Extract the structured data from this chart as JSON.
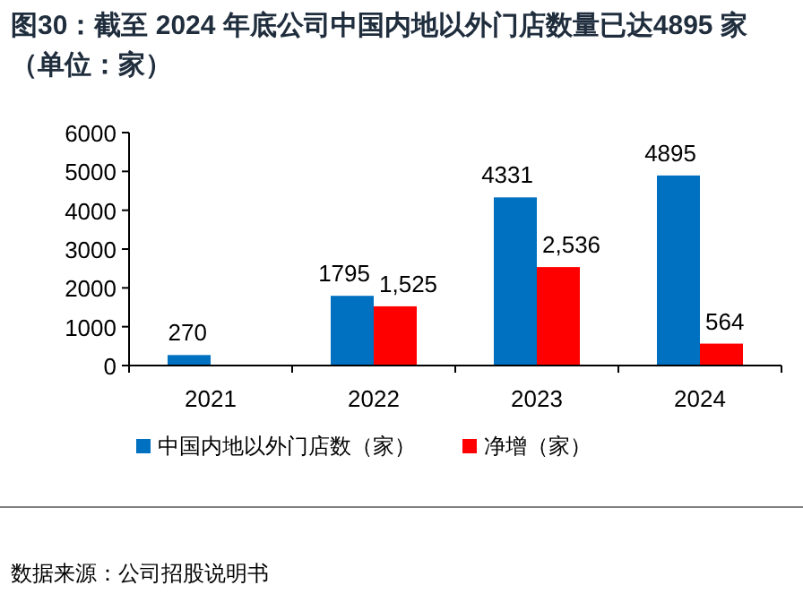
{
  "chart_data": {
    "type": "bar",
    "title": "图30：截至 2024 年底公司中国内地以外门店数量已达4895 家（单位：家）",
    "categories": [
      "2021",
      "2022",
      "2023",
      "2024"
    ],
    "series": [
      {
        "name": "中国内地以外门店数（家）",
        "color": "#0070c0",
        "values": [
          270,
          1795,
          4331,
          4895
        ],
        "value_labels": [
          "270",
          "1795",
          "4331",
          "4895"
        ]
      },
      {
        "name": "净增（家）",
        "color": "#ff0000",
        "values": [
          null,
          1525,
          2536,
          564
        ],
        "value_labels": [
          null,
          "1,525",
          "2,536",
          "564"
        ]
      }
    ],
    "ylim": [
      0,
      6000
    ],
    "yticks": [
      0,
      1000,
      2000,
      3000,
      4000,
      5000,
      6000
    ],
    "grid": false,
    "legend": "bottom",
    "annotations": [
      "数据来源：公司招股说明书"
    ]
  }
}
